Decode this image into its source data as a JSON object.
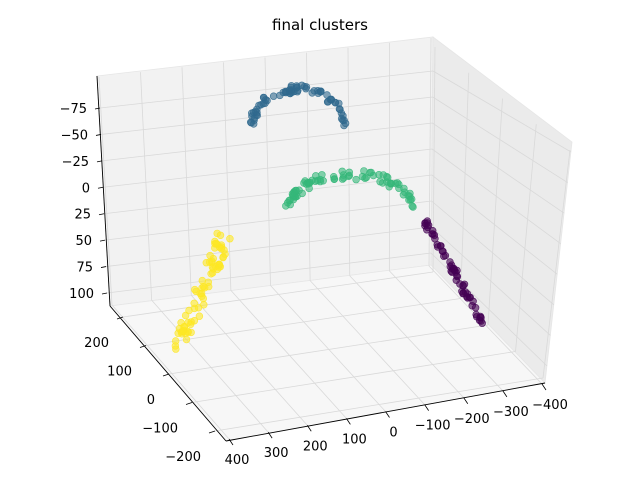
{
  "chart_data": {
    "type": "scatter",
    "projection": "3d",
    "title": "final clusters",
    "grid": true,
    "legend": "none",
    "axes": {
      "x": {
        "ticks": [
          "400",
          "300",
          "200",
          "100",
          "0",
          "−100",
          "−200",
          "−300",
          "−400"
        ]
      },
      "y": {
        "ticks": [
          "200",
          "100",
          "0",
          "−100",
          "−200"
        ]
      },
      "z": {
        "ticks": [
          "−75",
          "−50",
          "−25",
          "0",
          "25",
          "50",
          "75",
          "100"
        ]
      }
    },
    "series": [
      {
        "color": "#30698e",
        "points": 70
      },
      {
        "color": "#35b779",
        "points": 80
      },
      {
        "color": "#fde725",
        "points": 75
      },
      {
        "color": "#440154",
        "points": 60
      }
    ]
  }
}
